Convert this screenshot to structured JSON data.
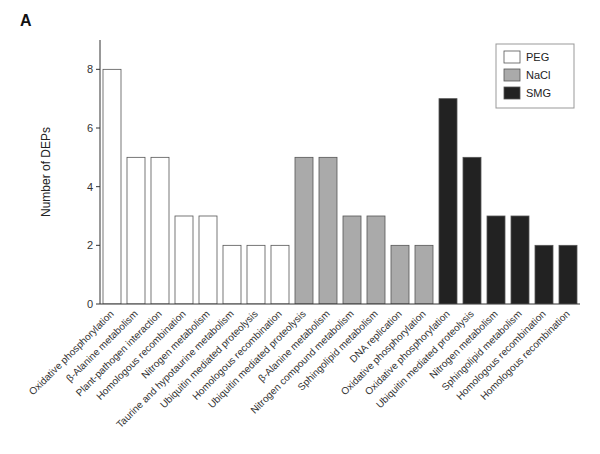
{
  "chart_data": {
    "type": "bar",
    "title": "A",
    "categories": [
      "Oxidative phosphorylation",
      "β-Alanine metabolism",
      "Plant-pathogen interaction",
      "Homologous recombination",
      "Nitrogen metabolism",
      "Taurine and hypotaurine metabolism",
      "Ubiquitin mediated proteolysis",
      "Homologous recombination",
      "Ubiquitin mediated proteolysis",
      "β-Alanine metabolism",
      "Nitrogen compound metabolism",
      "Sphingolipid metabolism",
      "DNA replication",
      "Oxidative phosphorylation",
      "Oxidative phosphorylation",
      "Ubiquitin mediated proteolysis",
      "Nitrogen metabolism",
      "Sphingolipid metabolism",
      "Homologous recombination",
      "Homologous recombination"
    ],
    "series": [
      {
        "name": "PEG",
        "color": "#FFFFFF",
        "values": [
          8,
          5,
          5,
          3,
          3,
          2,
          2,
          2,
          null,
          null,
          null,
          null,
          null,
          null,
          null,
          null,
          null,
          null,
          null,
          null
        ]
      },
      {
        "name": "NaCl",
        "color": "#AAAAAA",
        "values": [
          null,
          null,
          null,
          null,
          null,
          null,
          null,
          null,
          5,
          5,
          3,
          3,
          2,
          2,
          null,
          null,
          null,
          null,
          null,
          null
        ]
      },
      {
        "name": "SMG",
        "color": "#222222",
        "values": [
          null,
          null,
          null,
          null,
          null,
          null,
          null,
          null,
          null,
          null,
          null,
          null,
          null,
          null,
          7,
          5,
          3,
          3,
          2,
          2
        ]
      }
    ],
    "y_label": "Number of DEPs",
    "ylim": [
      0,
      9
    ],
    "yticks": [
      0,
      2,
      4,
      6,
      8
    ],
    "grid": false,
    "legend": "upper right"
  }
}
